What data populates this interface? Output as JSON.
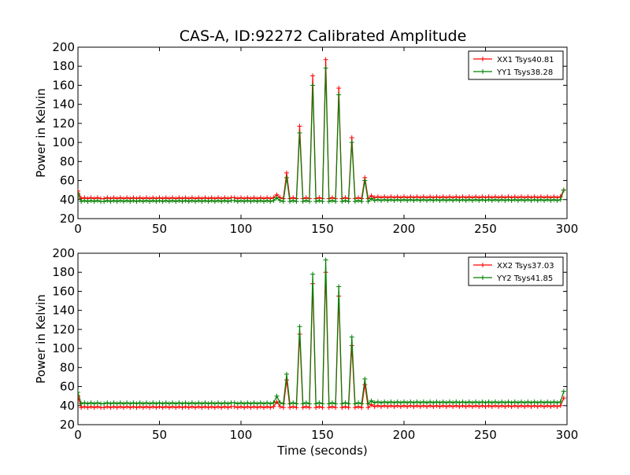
{
  "title": "CAS-A, ID:92272 Calibrated Amplitude",
  "colors": {
    "xx": "#ff0000",
    "yy": "#008000",
    "frame": "#000000",
    "background": "#ffffff"
  },
  "chart_data": [
    {
      "type": "line",
      "title": "CAS-A, ID:92272 Calibrated Amplitude",
      "xlabel": "",
      "ylabel": "Power in Kelvin",
      "xlim": [
        0,
        300
      ],
      "ylim": [
        20,
        200
      ],
      "xticks": [
        "0",
        "50",
        "100",
        "150",
        "200",
        "250",
        "300"
      ],
      "yticks": [
        "20",
        "40",
        "60",
        "80",
        "100",
        "120",
        "140",
        "160",
        "180",
        "200"
      ],
      "grid": false,
      "legend_position": "top-right",
      "marker": "plus",
      "x": [
        0,
        2,
        4,
        6,
        8,
        10,
        12,
        14,
        16,
        18,
        20,
        22,
        24,
        26,
        28,
        30,
        32,
        34,
        36,
        38,
        40,
        42,
        44,
        46,
        48,
        50,
        52,
        54,
        56,
        58,
        60,
        62,
        64,
        66,
        68,
        70,
        72,
        74,
        76,
        78,
        80,
        82,
        84,
        86,
        88,
        90,
        92,
        94,
        96,
        98,
        100,
        102,
        104,
        106,
        108,
        110,
        112,
        114,
        116,
        118,
        120,
        122,
        124,
        126,
        128,
        130,
        132,
        134,
        136,
        138,
        140,
        142,
        144,
        146,
        148,
        150,
        152,
        154,
        156,
        158,
        160,
        162,
        164,
        166,
        168,
        170,
        172,
        174,
        176,
        178,
        180,
        182,
        184,
        186,
        188,
        190,
        192,
        194,
        196,
        198,
        200,
        202,
        204,
        206,
        208,
        210,
        212,
        214,
        216,
        218,
        220,
        222,
        224,
        226,
        228,
        230,
        232,
        234,
        236,
        238,
        240,
        242,
        244,
        246,
        248,
        250,
        252,
        254,
        256,
        258,
        260,
        262,
        264,
        266,
        268,
        270,
        272,
        274,
        276,
        278,
        280,
        282,
        284,
        286,
        288,
        290,
        292,
        294,
        296,
        298
      ],
      "series": [
        {
          "name": "XX1 Tsys40.81",
          "color": "#ff0000",
          "values": [
            49,
            41,
            42,
            41,
            42,
            41,
            42,
            41,
            41,
            42,
            41,
            42,
            41,
            42,
            41,
            42,
            41,
            42,
            41,
            42,
            41,
            42,
            41,
            42,
            41,
            42,
            41,
            42,
            41,
            42,
            41,
            42,
            41,
            42,
            41,
            42,
            41,
            42,
            41,
            42,
            41,
            42,
            41,
            42,
            41,
            42,
            41,
            42,
            42,
            41,
            42,
            41,
            42,
            41,
            42,
            41,
            42,
            41,
            42,
            41,
            42,
            45,
            42,
            41,
            68,
            41,
            42,
            41,
            117,
            41,
            42,
            41,
            170,
            41,
            42,
            41,
            187,
            41,
            42,
            41,
            157,
            41,
            42,
            41,
            105,
            41,
            42,
            41,
            63,
            41,
            44,
            42,
            43,
            42,
            43,
            42,
            43,
            42,
            43,
            42,
            43,
            42,
            43,
            42,
            43,
            42,
            43,
            42,
            43,
            42,
            43,
            42,
            43,
            42,
            43,
            42,
            43,
            42,
            43,
            42,
            43,
            42,
            43,
            42,
            43,
            42,
            43,
            42,
            43,
            42,
            43,
            42,
            43,
            42,
            43,
            42,
            43,
            42,
            43,
            42,
            43,
            42,
            43,
            42,
            43,
            42,
            43,
            42,
            43,
            50
          ]
        },
        {
          "name": "YY1 Tsys38.28",
          "color": "#008000",
          "values": [
            46,
            38,
            39,
            38,
            39,
            38,
            39,
            38,
            38,
            39,
            38,
            39,
            38,
            39,
            38,
            39,
            38,
            39,
            38,
            39,
            38,
            39,
            38,
            39,
            38,
            39,
            38,
            39,
            38,
            39,
            38,
            39,
            38,
            39,
            38,
            39,
            38,
            39,
            38,
            39,
            38,
            39,
            38,
            39,
            38,
            39,
            38,
            39,
            39,
            38,
            39,
            38,
            39,
            38,
            39,
            38,
            39,
            38,
            39,
            38,
            39,
            42,
            39,
            38,
            63,
            38,
            39,
            38,
            110,
            38,
            39,
            38,
            160,
            38,
            39,
            38,
            178,
            38,
            39,
            38,
            150,
            38,
            39,
            38,
            100,
            38,
            39,
            38,
            60,
            38,
            41,
            39,
            40,
            39,
            40,
            39,
            40,
            39,
            40,
            39,
            40,
            39,
            40,
            39,
            40,
            39,
            40,
            39,
            40,
            39,
            40,
            39,
            40,
            39,
            40,
            39,
            40,
            39,
            40,
            39,
            40,
            39,
            40,
            39,
            40,
            39,
            40,
            39,
            40,
            39,
            40,
            39,
            40,
            39,
            40,
            39,
            40,
            39,
            40,
            39,
            40,
            39,
            40,
            39,
            40,
            39,
            40,
            39,
            40,
            50
          ]
        }
      ]
    },
    {
      "type": "line",
      "title": "",
      "xlabel": "Time (seconds)",
      "ylabel": "Power in Kelvin",
      "xlim": [
        0,
        300
      ],
      "ylim": [
        20,
        200
      ],
      "xticks": [
        "0",
        "50",
        "100",
        "150",
        "200",
        "250",
        "300"
      ],
      "yticks": [
        "20",
        "40",
        "60",
        "80",
        "100",
        "120",
        "140",
        "160",
        "180",
        "200"
      ],
      "grid": false,
      "legend_position": "top-right",
      "marker": "plus",
      "x": [
        0,
        2,
        4,
        6,
        8,
        10,
        12,
        14,
        16,
        18,
        20,
        22,
        24,
        26,
        28,
        30,
        32,
        34,
        36,
        38,
        40,
        42,
        44,
        46,
        48,
        50,
        52,
        54,
        56,
        58,
        60,
        62,
        64,
        66,
        68,
        70,
        72,
        74,
        76,
        78,
        80,
        82,
        84,
        86,
        88,
        90,
        92,
        94,
        96,
        98,
        100,
        102,
        104,
        106,
        108,
        110,
        112,
        114,
        116,
        118,
        120,
        122,
        124,
        126,
        128,
        130,
        132,
        134,
        136,
        138,
        140,
        142,
        144,
        146,
        148,
        150,
        152,
        154,
        156,
        158,
        160,
        162,
        164,
        166,
        168,
        170,
        172,
        174,
        176,
        178,
        180,
        182,
        184,
        186,
        188,
        190,
        192,
        194,
        196,
        198,
        200,
        202,
        204,
        206,
        208,
        210,
        212,
        214,
        216,
        218,
        220,
        222,
        224,
        226,
        228,
        230,
        232,
        234,
        236,
        238,
        240,
        242,
        244,
        246,
        248,
        250,
        252,
        254,
        256,
        258,
        260,
        262,
        264,
        266,
        268,
        270,
        272,
        274,
        276,
        278,
        280,
        282,
        284,
        286,
        288,
        290,
        292,
        294,
        296,
        298
      ],
      "series": [
        {
          "name": "XX2 Tsys37.03",
          "color": "#ff0000",
          "values": [
            50,
            38,
            39,
            38,
            39,
            38,
            39,
            38,
            38,
            39,
            38,
            39,
            38,
            39,
            38,
            39,
            38,
            39,
            38,
            39,
            38,
            39,
            38,
            39,
            38,
            39,
            38,
            39,
            38,
            39,
            38,
            39,
            38,
            39,
            38,
            39,
            38,
            39,
            38,
            39,
            38,
            39,
            38,
            39,
            38,
            39,
            38,
            39,
            39,
            38,
            39,
            38,
            39,
            38,
            39,
            38,
            39,
            38,
            39,
            38,
            39,
            44,
            39,
            38,
            67,
            38,
            39,
            38,
            115,
            38,
            39,
            38,
            168,
            38,
            39,
            38,
            180,
            38,
            39,
            38,
            155,
            38,
            39,
            38,
            103,
            38,
            39,
            38,
            62,
            38,
            41,
            39,
            40,
            39,
            40,
            39,
            40,
            39,
            40,
            39,
            40,
            39,
            40,
            39,
            40,
            39,
            40,
            39,
            40,
            39,
            40,
            39,
            40,
            39,
            40,
            39,
            40,
            39,
            40,
            39,
            40,
            39,
            40,
            39,
            40,
            39,
            40,
            39,
            40,
            39,
            40,
            39,
            40,
            39,
            40,
            39,
            40,
            39,
            40,
            39,
            40,
            39,
            40,
            39,
            40,
            39,
            40,
            39,
            40,
            48
          ]
        },
        {
          "name": "YY2 Tsys41.85",
          "color": "#008000",
          "values": [
            54,
            42,
            43,
            42,
            43,
            42,
            43,
            42,
            42,
            43,
            42,
            43,
            42,
            43,
            42,
            43,
            42,
            43,
            42,
            43,
            42,
            43,
            42,
            43,
            42,
            43,
            42,
            43,
            42,
            43,
            42,
            43,
            42,
            43,
            42,
            43,
            42,
            43,
            42,
            43,
            42,
            43,
            42,
            43,
            42,
            43,
            42,
            43,
            43,
            42,
            43,
            42,
            43,
            42,
            43,
            42,
            43,
            42,
            43,
            42,
            43,
            50,
            43,
            42,
            73,
            42,
            43,
            42,
            123,
            42,
            43,
            42,
            178,
            42,
            43,
            42,
            193,
            42,
            43,
            42,
            165,
            42,
            43,
            42,
            112,
            42,
            43,
            42,
            68,
            42,
            45,
            43,
            44,
            43,
            44,
            43,
            44,
            43,
            44,
            43,
            44,
            43,
            44,
            43,
            44,
            43,
            44,
            43,
            44,
            43,
            44,
            43,
            44,
            43,
            44,
            43,
            44,
            43,
            44,
            43,
            44,
            43,
            44,
            43,
            44,
            43,
            44,
            43,
            44,
            43,
            44,
            43,
            44,
            43,
            44,
            43,
            44,
            43,
            44,
            43,
            44,
            43,
            44,
            43,
            44,
            43,
            44,
            43,
            44,
            55
          ]
        }
      ]
    }
  ]
}
